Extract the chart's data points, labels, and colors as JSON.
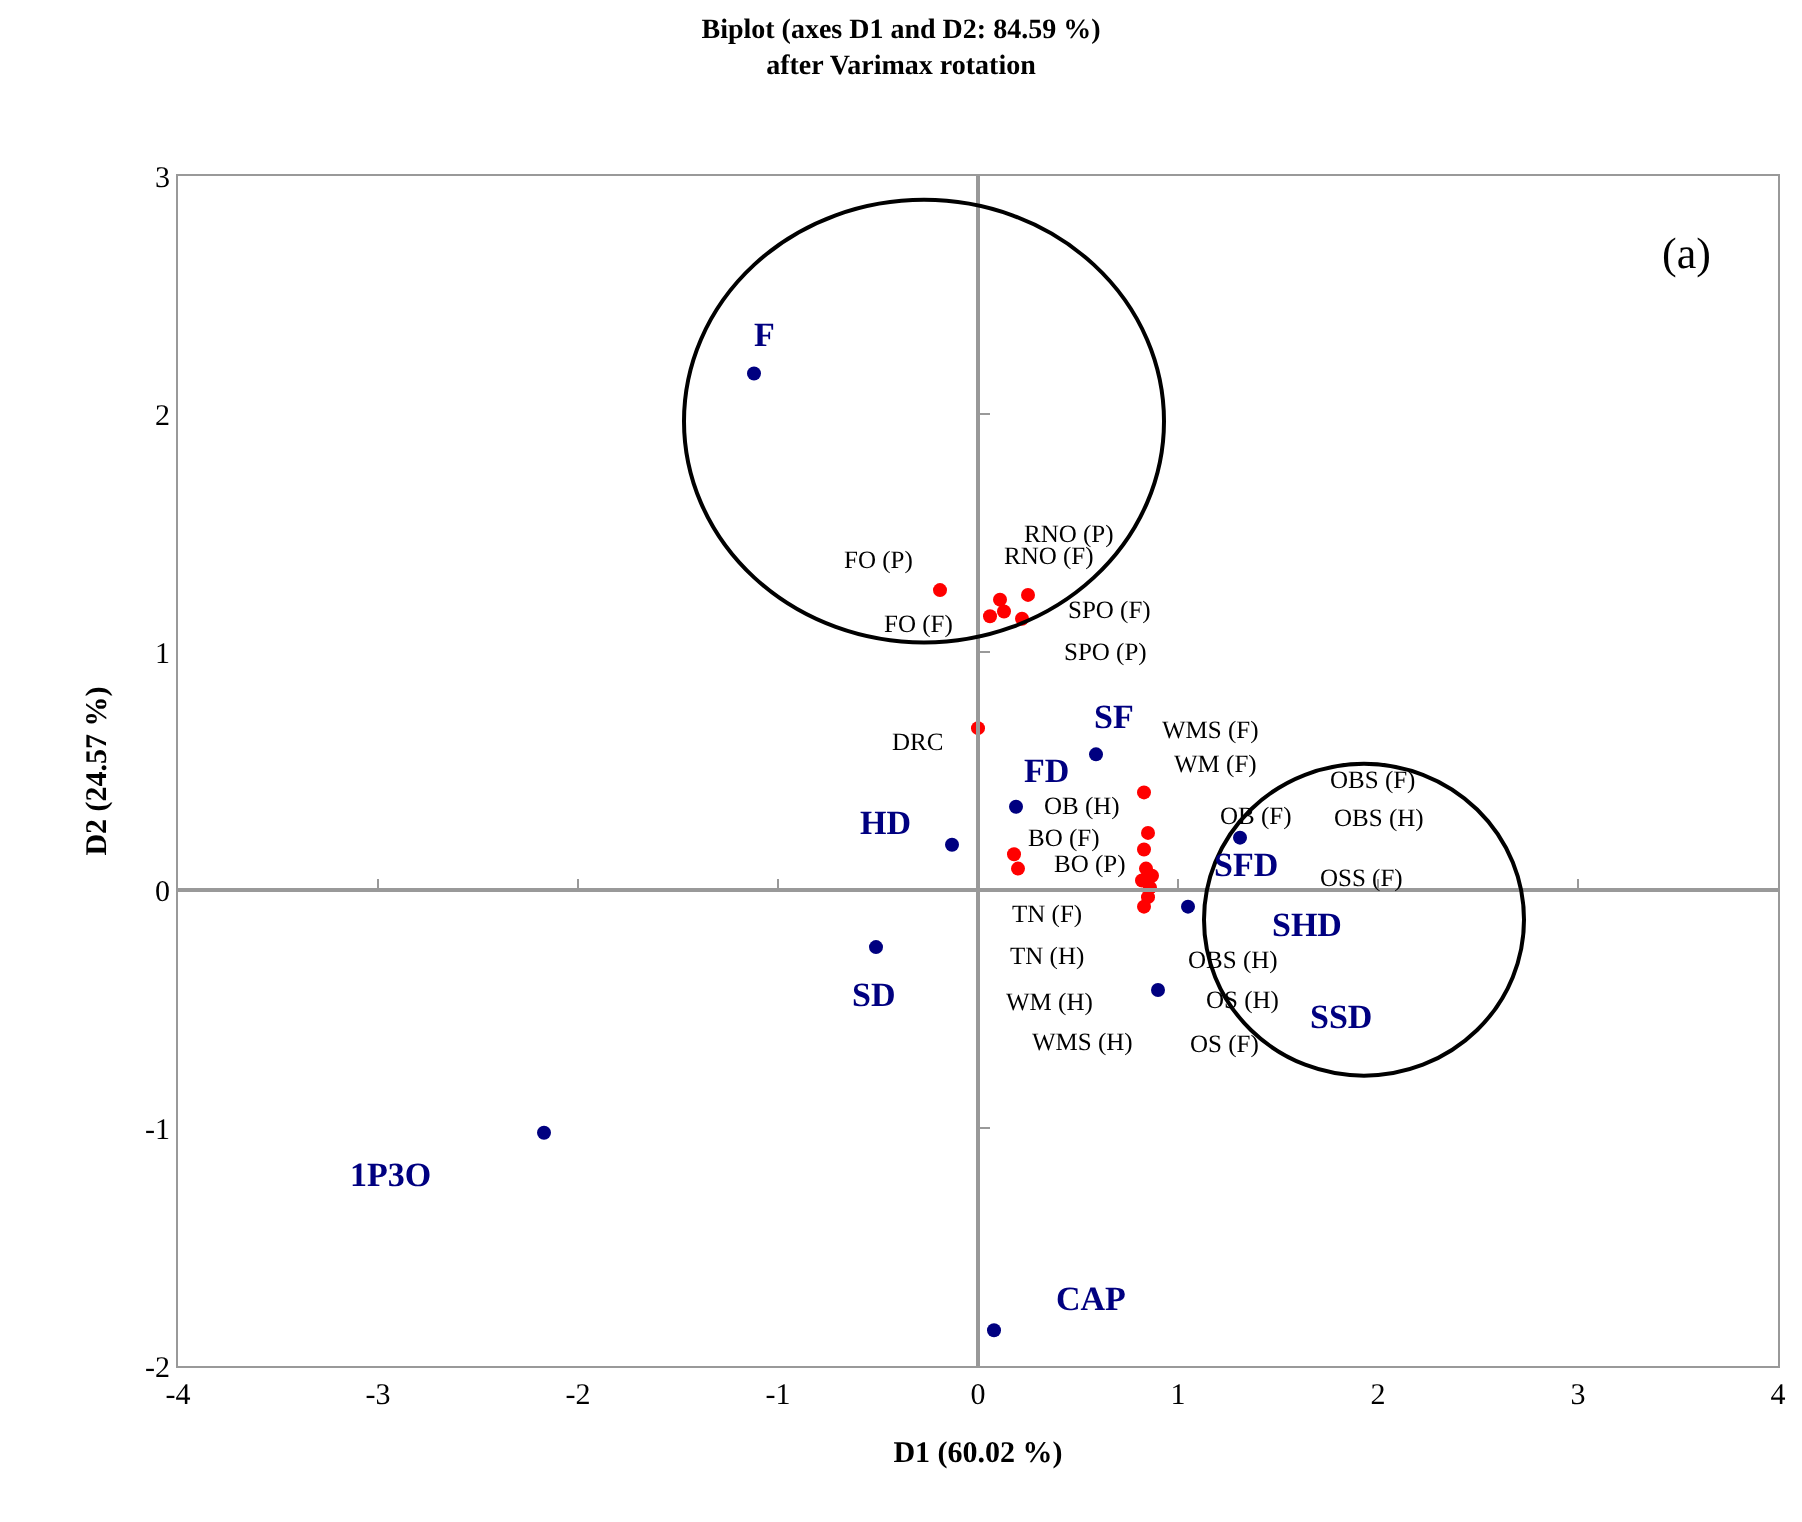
{
  "chart_data": {
    "type": "scatter",
    "title": "Biplot (axes D1 and D2: 84.59 %)\nafter Varimax rotation",
    "xlabel": "D1 (60.02 %)",
    "ylabel": "D2 (24.57 %)",
    "xlim": [
      -4,
      4
    ],
    "ylim": [
      -2,
      3
    ],
    "xticks": [
      -4,
      -3,
      -2,
      -1,
      0,
      1,
      2,
      3,
      4
    ],
    "yticks": [
      -2,
      -1,
      0,
      1,
      2,
      3
    ],
    "marker": "circle",
    "series": [
      {
        "color": "#000080",
        "x": [
          -1.12,
          0.59,
          0.19,
          -0.13,
          -0.51,
          -2.17,
          0.08,
          1.31,
          1.05,
          0.9
        ],
        "values": [
          2.17,
          0.57,
          0.35,
          0.19,
          -0.24,
          -1.02,
          -1.85,
          0.22,
          -0.07,
          -0.42
        ]
      },
      {
        "color": "#ff0000",
        "x": [
          -0.19,
          0.06,
          0.11,
          0.13,
          0.25,
          0.22,
          0.0,
          0.83,
          0.85,
          0.83,
          0.18,
          0.2,
          0.84,
          0.87,
          0.82,
          0.86,
          0.85,
          0.83
        ],
        "values": [
          1.26,
          1.15,
          1.22,
          1.17,
          1.24,
          1.14,
          0.68,
          0.41,
          0.24,
          0.17,
          0.15,
          0.09,
          0.09,
          0.06,
          0.04,
          0.01,
          -0.03,
          -0.07
        ]
      }
    ],
    "annotations": [
      {
        "text": "F",
        "x": -1.12,
        "y": 2.17
      },
      {
        "text": "SF",
        "x": 0.59,
        "y": 0.57
      },
      {
        "text": "FD",
        "x": 0.19,
        "y": 0.35
      },
      {
        "text": "HD",
        "x": -0.13,
        "y": 0.19
      },
      {
        "text": "SD",
        "x": -0.51,
        "y": -0.24
      },
      {
        "text": "CAP",
        "x": 0.08,
        "y": -1.85
      },
      {
        "text": "SFD",
        "x": 1.31,
        "y": 0.22
      },
      {
        "text": "SHD",
        "x": 1.05,
        "y": -0.07
      },
      "1P3O",
      "SSD",
      "FO (P)",
      "FO (F)",
      "RNO (P)",
      "RNO (F)",
      "SPO (F)",
      "SPO (P)",
      "DRC",
      "WMS (F)",
      "WM (F)",
      "OB (F)",
      "OBS (F)",
      "OBS (H)",
      "OSS (F)",
      "OB (H)",
      "BO (F)",
      "BO (P)",
      "TN (F)",
      "TN (H)",
      "WM (H)",
      "WMS (H)",
      "OBS (H)",
      "OS (H)",
      "OS (F)",
      "(a)"
    ]
  }
}
